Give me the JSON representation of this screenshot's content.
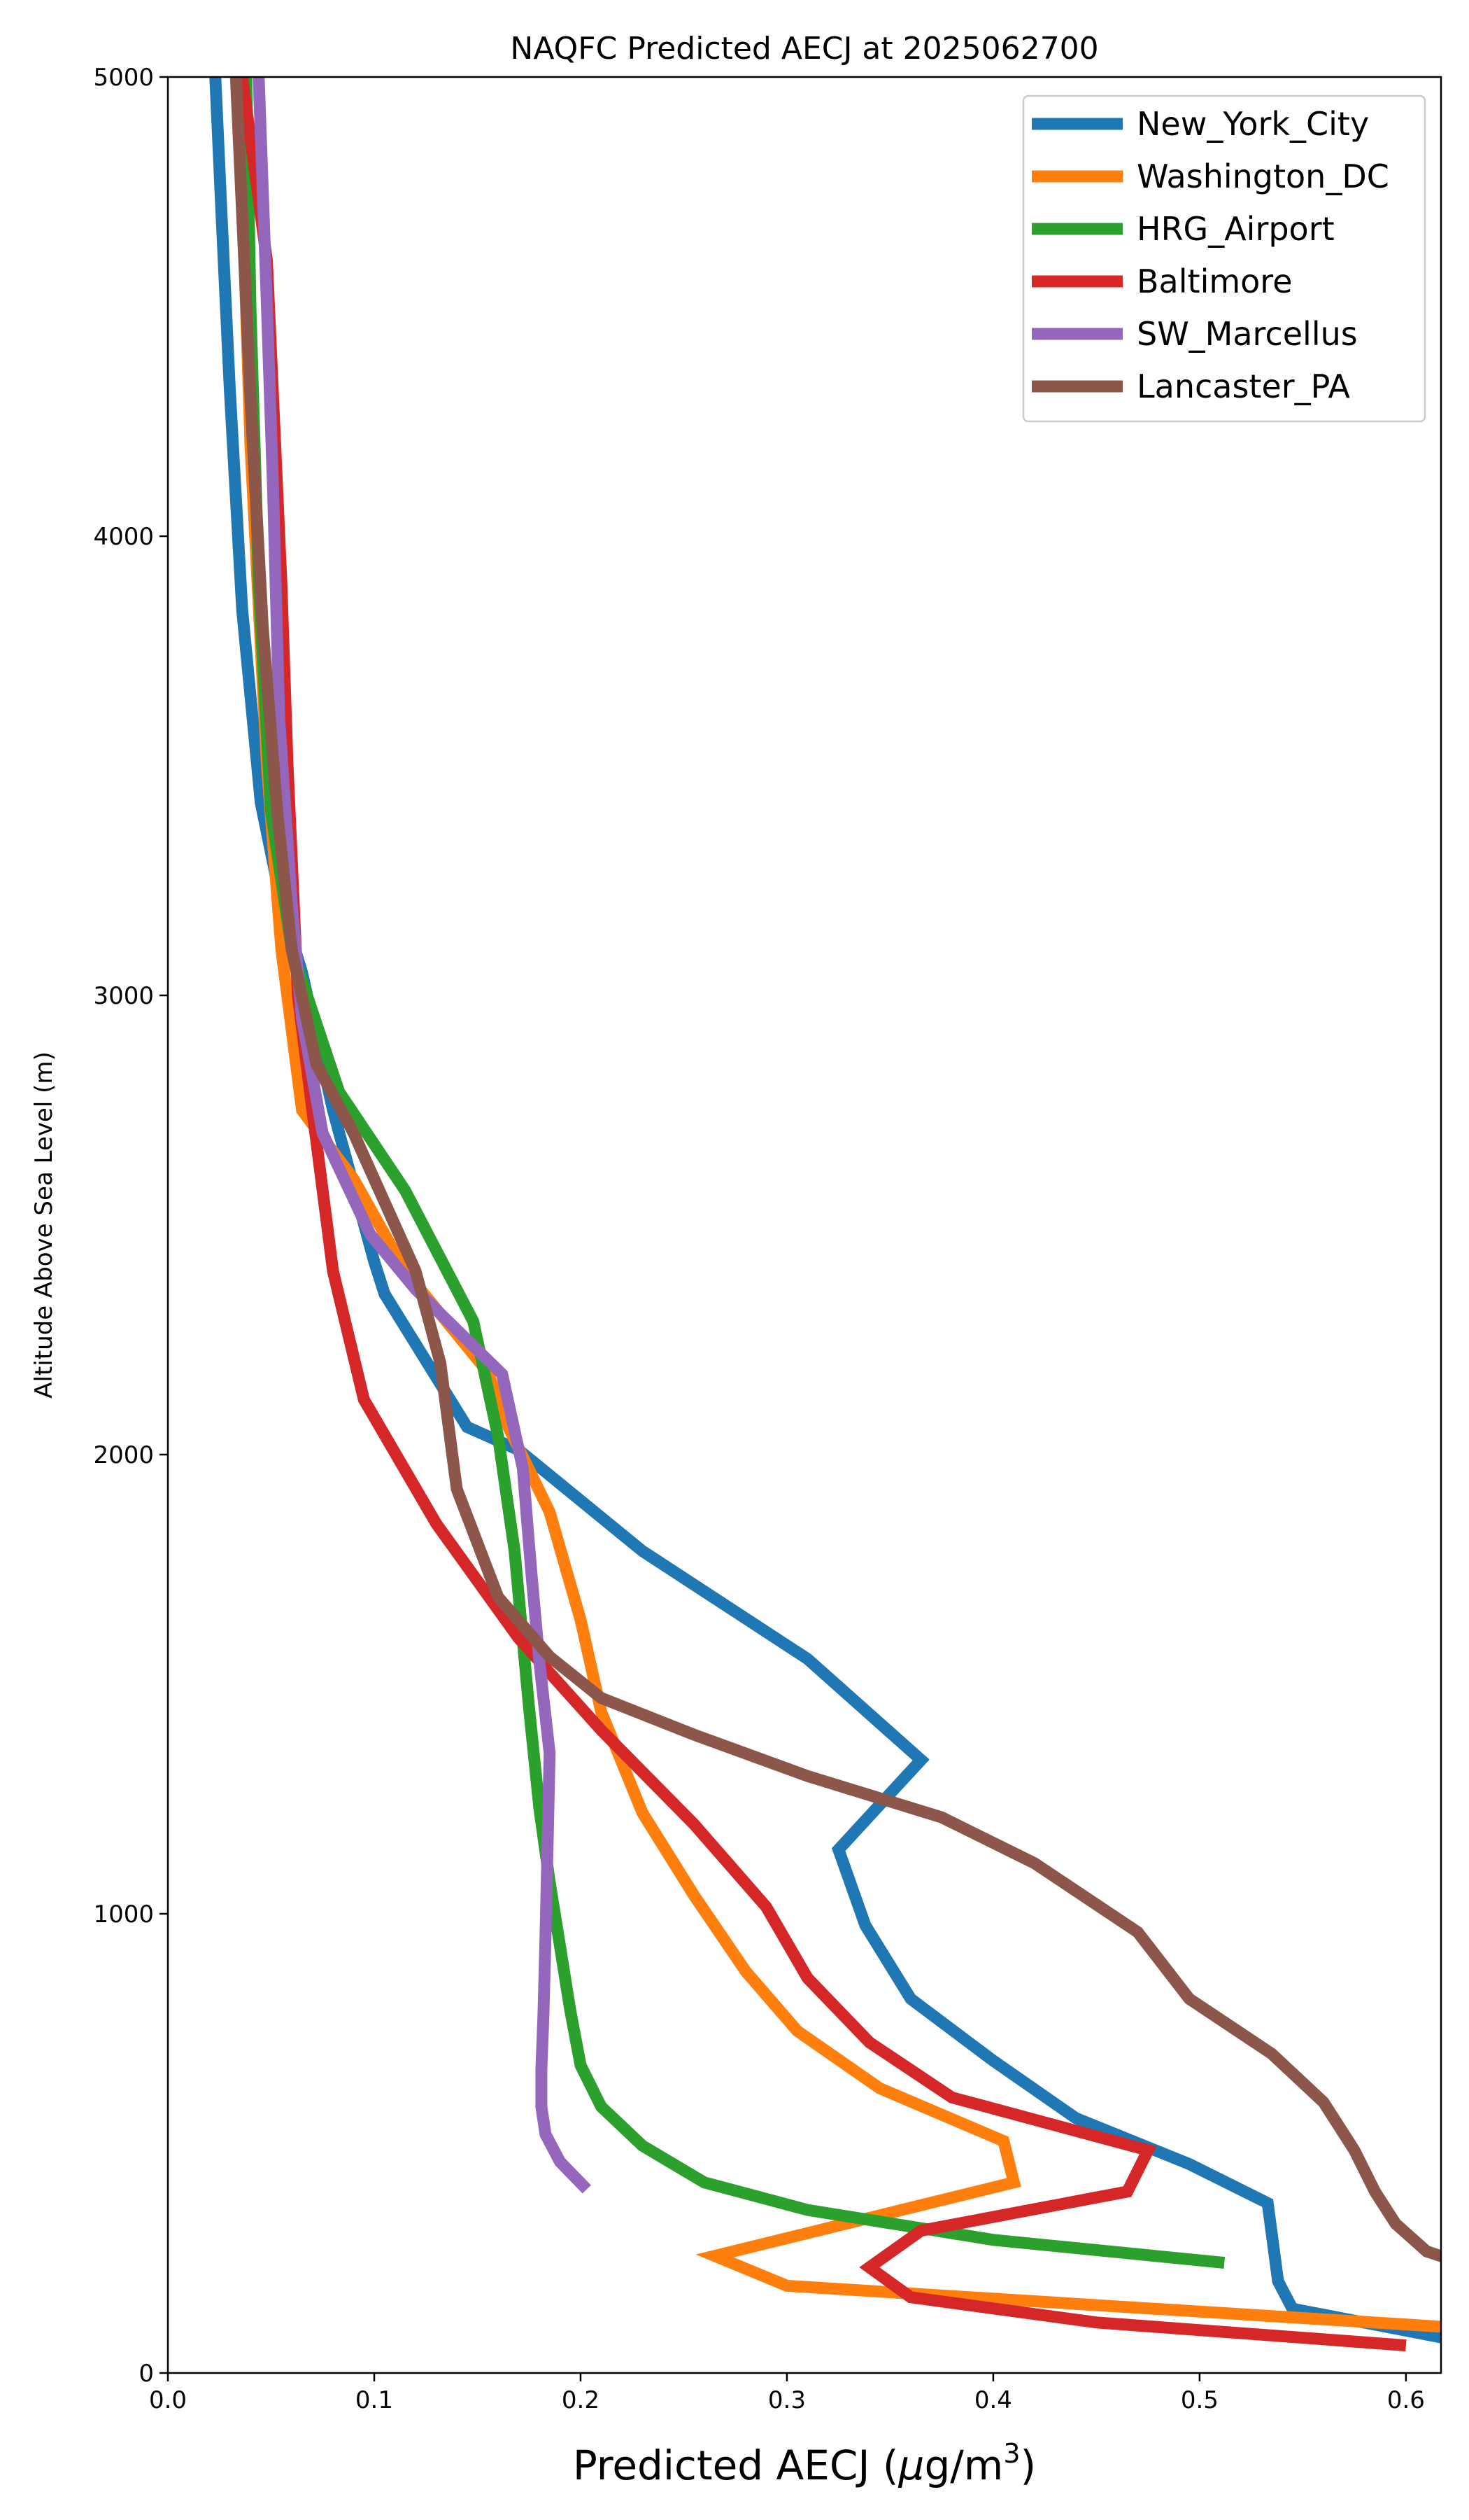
{
  "chart_data": {
    "type": "line",
    "title": "NAQFC Predicted AECJ at 2025062700",
    "xlabel_main": "Predicted AECJ (",
    "xlabel_mu": "μ",
    "xlabel_units": "g/m",
    "xlabel_sup": "3",
    "xlabel_close": ")",
    "ylabel": "Altitude Above Sea Level (m)",
    "xlim": [
      0.0,
      0.617
    ],
    "ylim": [
      0,
      5000
    ],
    "xticks": [
      0.0,
      0.1,
      0.2,
      0.3,
      0.4,
      0.5,
      0.6
    ],
    "xtick_labels": [
      "0.0",
      "0.1",
      "0.2",
      "0.3",
      "0.4",
      "0.5",
      "0.6"
    ],
    "yticks": [
      0,
      1000,
      2000,
      3000,
      4000,
      5000
    ],
    "ytick_labels": [
      "0",
      "1000",
      "2000",
      "3000",
      "4000",
      "5000"
    ],
    "grid": false,
    "legend_position": "top-right",
    "series": [
      {
        "name": "New_York_City",
        "color": "#1f77b4",
        "points": [
          [
            0.62,
            75
          ],
          [
            0.545,
            140
          ],
          [
            0.538,
            200
          ],
          [
            0.533,
            370
          ],
          [
            0.495,
            455
          ],
          [
            0.44,
            555
          ],
          [
            0.4,
            680
          ],
          [
            0.36,
            815
          ],
          [
            0.338,
            975
          ],
          [
            0.325,
            1140
          ],
          [
            0.365,
            1335
          ],
          [
            0.31,
            1555
          ],
          [
            0.23,
            1790
          ],
          [
            0.17,
            2010
          ],
          [
            0.145,
            2060
          ],
          [
            0.105,
            2350
          ],
          [
            0.1,
            2420
          ],
          [
            0.08,
            2750
          ],
          [
            0.065,
            3050
          ],
          [
            0.055,
            3200
          ],
          [
            0.045,
            3420
          ],
          [
            0.036,
            3840
          ],
          [
            0.03,
            4320
          ],
          [
            0.026,
            4700
          ],
          [
            0.023,
            5000
          ]
        ]
      },
      {
        "name": "Washington_DC",
        "color": "#ff7f0e",
        "points": [
          [
            0.62,
            100
          ],
          [
            0.3,
            190
          ],
          [
            0.265,
            255
          ],
          [
            0.41,
            415
          ],
          [
            0.405,
            505
          ],
          [
            0.345,
            620
          ],
          [
            0.305,
            745
          ],
          [
            0.28,
            875
          ],
          [
            0.255,
            1040
          ],
          [
            0.23,
            1220
          ],
          [
            0.21,
            1440
          ],
          [
            0.2,
            1640
          ],
          [
            0.185,
            1875
          ],
          [
            0.165,
            2060
          ],
          [
            0.155,
            2180
          ],
          [
            0.115,
            2400
          ],
          [
            0.09,
            2600
          ],
          [
            0.065,
            2750
          ],
          [
            0.055,
            3100
          ],
          [
            0.048,
            3500
          ],
          [
            0.04,
            4200
          ],
          [
            0.035,
            4900
          ],
          [
            0.033,
            5000
          ]
        ]
      },
      {
        "name": "HRG_Airport",
        "color": "#2ca02c",
        "points": [
          [
            0.512,
            240
          ],
          [
            0.4,
            290
          ],
          [
            0.31,
            355
          ],
          [
            0.26,
            415
          ],
          [
            0.23,
            495
          ],
          [
            0.21,
            580
          ],
          [
            0.2,
            670
          ],
          [
            0.195,
            790
          ],
          [
            0.19,
            930
          ],
          [
            0.185,
            1070
          ],
          [
            0.18,
            1230
          ],
          [
            0.175,
            1450
          ],
          [
            0.168,
            1790
          ],
          [
            0.16,
            2040
          ],
          [
            0.148,
            2290
          ],
          [
            0.115,
            2575
          ],
          [
            0.083,
            2790
          ],
          [
            0.06,
            3100
          ],
          [
            0.05,
            3400
          ],
          [
            0.044,
            3900
          ],
          [
            0.04,
            4500
          ],
          [
            0.038,
            5000
          ]
        ]
      },
      {
        "name": "Baltimore",
        "color": "#d62728",
        "points": [
          [
            0.6,
            60
          ],
          [
            0.45,
            110
          ],
          [
            0.36,
            165
          ],
          [
            0.34,
            230
          ],
          [
            0.365,
            310
          ],
          [
            0.465,
            395
          ],
          [
            0.475,
            485
          ],
          [
            0.38,
            600
          ],
          [
            0.34,
            720
          ],
          [
            0.31,
            860
          ],
          [
            0.29,
            1015
          ],
          [
            0.255,
            1195
          ],
          [
            0.21,
            1400
          ],
          [
            0.17,
            1600
          ],
          [
            0.13,
            1850
          ],
          [
            0.095,
            2120
          ],
          [
            0.08,
            2400
          ],
          [
            0.07,
            2750
          ],
          [
            0.063,
            3000
          ],
          [
            0.058,
            3500
          ],
          [
            0.055,
            3900
          ],
          [
            0.048,
            4600
          ],
          [
            0.036,
            5000
          ]
        ]
      },
      {
        "name": "SW_Marcellus",
        "color": "#9467bd",
        "points": [
          [
            0.203,
            400
          ],
          [
            0.19,
            460
          ],
          [
            0.183,
            520
          ],
          [
            0.181,
            580
          ],
          [
            0.181,
            660
          ],
          [
            0.182,
            780
          ],
          [
            0.183,
            950
          ],
          [
            0.184,
            1150
          ],
          [
            0.185,
            1350
          ],
          [
            0.18,
            1550
          ],
          [
            0.176,
            1750
          ],
          [
            0.172,
            1970
          ],
          [
            0.162,
            2175
          ],
          [
            0.12,
            2360
          ],
          [
            0.098,
            2480
          ],
          [
            0.075,
            2700
          ],
          [
            0.065,
            2950
          ],
          [
            0.06,
            3200
          ],
          [
            0.054,
            3600
          ],
          [
            0.051,
            4100
          ],
          [
            0.048,
            4500
          ],
          [
            0.044,
            5000
          ]
        ]
      },
      {
        "name": "Lancaster_PA",
        "color": "#8c564b",
        "points": [
          [
            0.62,
            250
          ],
          [
            0.61,
            265
          ],
          [
            0.595,
            325
          ],
          [
            0.585,
            395
          ],
          [
            0.575,
            485
          ],
          [
            0.56,
            590
          ],
          [
            0.535,
            695
          ],
          [
            0.495,
            815
          ],
          [
            0.47,
            960
          ],
          [
            0.42,
            1110
          ],
          [
            0.375,
            1210
          ],
          [
            0.31,
            1300
          ],
          [
            0.255,
            1390
          ],
          [
            0.21,
            1470
          ],
          [
            0.185,
            1560
          ],
          [
            0.16,
            1690
          ],
          [
            0.14,
            1925
          ],
          [
            0.132,
            2200
          ],
          [
            0.12,
            2400
          ],
          [
            0.105,
            2550
          ],
          [
            0.09,
            2700
          ],
          [
            0.072,
            2850
          ],
          [
            0.06,
            3100
          ],
          [
            0.053,
            3400
          ],
          [
            0.046,
            3800
          ],
          [
            0.04,
            4300
          ],
          [
            0.036,
            4700
          ],
          [
            0.033,
            5000
          ]
        ]
      }
    ]
  }
}
